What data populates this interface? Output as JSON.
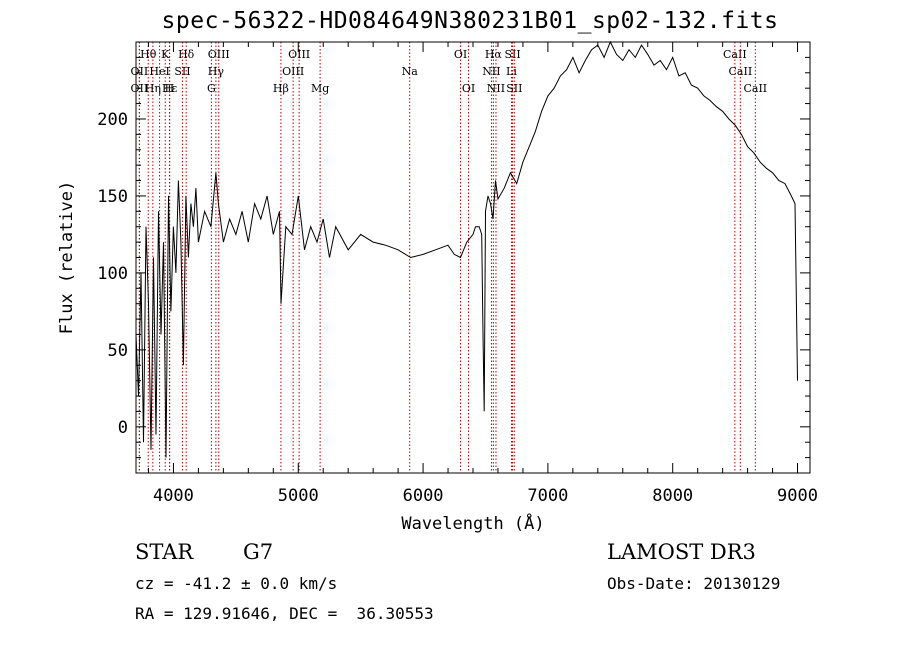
{
  "chart_data": {
    "type": "line",
    "title": "spec-56322-HD084649N380231B01_sp02-132.fits",
    "xlabel": "Wavelength (Å)",
    "ylabel": "Flux (relative)",
    "xlim": [
      3700,
      9100
    ],
    "ylim": [
      -30,
      250
    ],
    "xticks": [
      4000,
      5000,
      6000,
      7000,
      8000,
      9000
    ],
    "yticks": [
      0,
      50,
      100,
      150,
      200
    ],
    "series": [
      {
        "name": "spectrum",
        "x": [
          3700,
          3720,
          3740,
          3760,
          3780,
          3800,
          3820,
          3840,
          3860,
          3880,
          3900,
          3920,
          3940,
          3960,
          3980,
          4000,
          4020,
          4040,
          4060,
          4080,
          4100,
          4120,
          4140,
          4160,
          4180,
          4200,
          4250,
          4300,
          4340,
          4360,
          4400,
          4450,
          4500,
          4550,
          4600,
          4650,
          4700,
          4750,
          4800,
          4850,
          4862,
          4900,
          4950,
          5000,
          5050,
          5100,
          5150,
          5200,
          5250,
          5300,
          5400,
          5500,
          5600,
          5700,
          5800,
          5900,
          6000,
          6100,
          6200,
          6250,
          6300,
          6350,
          6400,
          6420,
          6450,
          6470,
          6480,
          6490,
          6500,
          6520,
          6540,
          6560,
          6580,
          6600,
          6650,
          6700,
          6750,
          6800,
          6850,
          6900,
          6950,
          7000,
          7050,
          7100,
          7150,
          7200,
          7250,
          7300,
          7350,
          7400,
          7450,
          7500,
          7550,
          7600,
          7650,
          7700,
          7750,
          7800,
          7850,
          7900,
          7950,
          8000,
          8050,
          8100,
          8150,
          8200,
          8250,
          8300,
          8350,
          8400,
          8450,
          8500,
          8550,
          8600,
          8650,
          8700,
          8750,
          8800,
          8850,
          8900,
          8950,
          8980,
          9000
        ],
        "y": [
          60,
          20,
          100,
          -10,
          130,
          80,
          -15,
          110,
          -5,
          140,
          60,
          120,
          -20,
          150,
          75,
          130,
          100,
          160,
          120,
          40,
          150,
          110,
          145,
          130,
          155,
          120,
          140,
          130,
          165,
          145,
          120,
          135,
          125,
          140,
          120,
          145,
          135,
          150,
          125,
          140,
          80,
          130,
          125,
          150,
          115,
          130,
          120,
          135,
          110,
          130,
          115,
          125,
          120,
          118,
          115,
          110,
          112,
          115,
          118,
          112,
          110,
          120,
          125,
          130,
          130,
          125,
          60,
          10,
          140,
          150,
          145,
          135,
          160,
          148,
          155,
          165,
          158,
          172,
          182,
          192,
          205,
          215,
          220,
          228,
          232,
          240,
          230,
          238,
          245,
          248,
          240,
          250,
          242,
          238,
          245,
          240,
          248,
          242,
          235,
          238,
          232,
          240,
          228,
          230,
          222,
          220,
          215,
          212,
          208,
          205,
          200,
          196,
          190,
          182,
          178,
          172,
          168,
          165,
          160,
          158,
          150,
          145,
          30
        ]
      }
    ],
    "spectral_lines": [
      {
        "label": "Hθ",
        "x": 3798,
        "row": 1
      },
      {
        "label": "K",
        "x": 3934,
        "row": 1
      },
      {
        "label": "Hδ",
        "x": 4102,
        "row": 1
      },
      {
        "label": "OIII",
        "x": 4363,
        "row": 1
      },
      {
        "label": "OIII",
        "x": 5007,
        "row": 1
      },
      {
        "label": "OI",
        "x": 6300,
        "row": 1
      },
      {
        "label": "Hα",
        "x": 6563,
        "row": 1
      },
      {
        "label": "SII",
        "x": 6717,
        "row": 1
      },
      {
        "label": "CaII",
        "x": 8498,
        "row": 1
      },
      {
        "label": "OII",
        "x": 3727,
        "row": 2
      },
      {
        "label": "HeI",
        "x": 3889,
        "row": 2
      },
      {
        "label": "SII",
        "x": 4072,
        "row": 2
      },
      {
        "label": "Hγ",
        "x": 4340,
        "row": 2
      },
      {
        "label": "OIII",
        "x": 4959,
        "row": 2
      },
      {
        "label": "Na",
        "x": 5893,
        "row": 2
      },
      {
        "label": "NII",
        "x": 6548,
        "row": 2
      },
      {
        "label": "Li",
        "x": 6708,
        "row": 2
      },
      {
        "label": "CaII",
        "x": 8542,
        "row": 2
      },
      {
        "label": "OII",
        "x": 3727,
        "row": 3
      },
      {
        "label": "Hε",
        "x": 3970,
        "row": 3
      },
      {
        "label": "Hη",
        "x": 3835,
        "row": 3
      },
      {
        "label": "H",
        "x": 3968,
        "row": 3
      },
      {
        "label": "G",
        "x": 4304,
        "row": 3
      },
      {
        "label": "Hβ",
        "x": 4861,
        "row": 3
      },
      {
        "label": "Mg",
        "x": 5175,
        "row": 3
      },
      {
        "label": "OI",
        "x": 6364,
        "row": 3
      },
      {
        "label": "NII",
        "x": 6584,
        "row": 3
      },
      {
        "label": "SII",
        "x": 6731,
        "row": 3
      },
      {
        "label": "CaII",
        "x": 8662,
        "row": 3
      }
    ]
  },
  "info": {
    "class": "STAR",
    "subclass": "G7",
    "survey": "LAMOST DR3",
    "cz": "cz = -41.2 ± 0.0 km/s",
    "obs_date": "Obs-Date: 20130129",
    "coords": "RA = 129.91646, DEC =  36.30553"
  },
  "colors": {
    "spectrum": "#000000",
    "lines": "#c00000",
    "axis": "#000000"
  }
}
